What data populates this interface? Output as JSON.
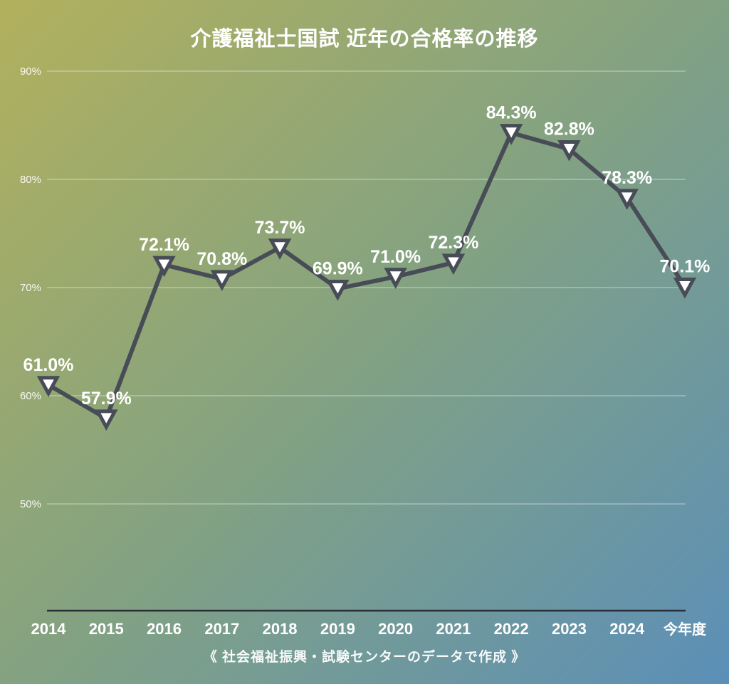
{
  "header": {
    "title": "介護福祉士国試 近年の合格率の推移"
  },
  "footer": {
    "note": "《 社会福祉振興・試験センターのデータで作成 》"
  },
  "colors": {
    "bg_gradient_start": "#b2b15c",
    "bg_gradient_mid": "#83a282",
    "bg_gradient_end": "#5b8fb8",
    "line": "#474c56",
    "marker_fill": "#ffffff",
    "marker_stroke": "#474c56",
    "grid": "rgba(255,255,255,0.42)",
    "axis": "#2b2f36",
    "text": "#ffffff"
  },
  "chart_data": {
    "type": "line",
    "title": "介護福祉士国試 近年の合格率の推移",
    "categories": [
      "2014",
      "2015",
      "2016",
      "2017",
      "2018",
      "2019",
      "2020",
      "2021",
      "2022",
      "2023",
      "2024",
      "今年度"
    ],
    "values": [
      61.0,
      57.9,
      72.1,
      70.8,
      73.7,
      69.9,
      71.0,
      72.3,
      84.3,
      82.8,
      78.3,
      70.1
    ],
    "point_labels": [
      "61.0%",
      "57.9%",
      "72.1%",
      "70.8%",
      "73.7%",
      "69.9%",
      "71.0%",
      "72.3%",
      "84.3%",
      "82.8%",
      "78.3%",
      "70.1%"
    ],
    "xlabel": "",
    "ylabel": "",
    "y_ticks": [
      {
        "value": 90,
        "label": "90%"
      },
      {
        "value": 80,
        "label": "80%"
      },
      {
        "value": 70,
        "label": "70%"
      },
      {
        "value": 60,
        "label": "60%"
      },
      {
        "value": 50,
        "label": "50%"
      }
    ],
    "ylim": [
      40,
      93
    ],
    "grid": "horizontal",
    "legend": "none",
    "marker": "triangle-down",
    "source_note": "《 社会福祉振興・試験センターのデータで作成 》"
  }
}
